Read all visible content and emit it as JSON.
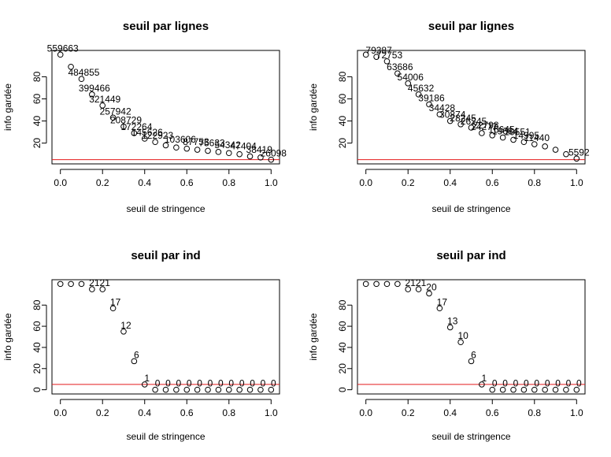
{
  "colors": {
    "reference_line": "#e41a1c",
    "points": "#000000"
  },
  "chart_data": [
    {
      "type": "scatter",
      "title": "seuil par lignes",
      "xlabel": "seuil de stringence",
      "ylabel": "info gardée",
      "xlim": [
        0,
        1
      ],
      "ylim": [
        5,
        100
      ],
      "x_ticks": [
        "0.0",
        "0.2",
        "0.4",
        "0.6",
        "0.8",
        "1.0"
      ],
      "y_ticks": [
        "20",
        "40",
        "60",
        "80"
      ],
      "reference_line_y": 5,
      "x": [
        0,
        0.05,
        0.1,
        0.15,
        0.2,
        0.25,
        0.3,
        0.35,
        0.4,
        0.45,
        0.5,
        0.55,
        0.6,
        0.65,
        0.7,
        0.75,
        0.8,
        0.85,
        0.9,
        0.95,
        1.0
      ],
      "y": [
        100,
        89,
        78,
        64,
        54,
        43,
        35,
        29,
        24,
        21,
        18,
        16,
        15,
        14,
        13,
        12,
        11,
        10,
        8,
        7,
        5
      ],
      "labels": [
        "559663",
        "",
        "484855",
        "399466",
        "321449",
        "257942",
        "208729",
        "172264",
        "145626",
        "122923",
        "",
        "",
        "",
        "",
        "",
        "",
        "",
        "",
        "",
        "",
        "26098"
      ],
      "overlap_labels": [
        "103606",
        "87753",
        "75633",
        "54342",
        "47404",
        "38419"
      ]
    },
    {
      "type": "scatter",
      "title": "seuil par lignes",
      "xlabel": "seuil de stringence",
      "ylabel": "info gardée",
      "xlim": [
        0,
        1
      ],
      "ylim": [
        5,
        100
      ],
      "x_ticks": [
        "0.0",
        "0.2",
        "0.4",
        "0.6",
        "0.8",
        "1.0"
      ],
      "y_ticks": [
        "20",
        "40",
        "60",
        "80"
      ],
      "reference_line_y": 5,
      "x": [
        0,
        0.05,
        0.1,
        0.15,
        0.2,
        0.25,
        0.3,
        0.35,
        0.4,
        0.45,
        0.5,
        0.55,
        0.6,
        0.65,
        0.7,
        0.75,
        0.8,
        0.85,
        0.9,
        0.95,
        1.0
      ],
      "y": [
        100,
        98,
        94,
        83,
        74,
        64,
        55,
        46,
        40,
        37,
        34,
        29,
        27,
        25,
        23,
        21,
        19,
        17,
        14,
        10,
        6
      ],
      "labels": [
        "",
        "79387",
        "72753",
        "63686",
        "54006",
        "45632",
        "39186",
        "34428",
        "30874",
        "28245",
        "26245",
        "24277",
        "",
        "19684",
        "",
        "14995",
        "11440",
        "",
        "",
        "",
        "5592"
      ],
      "overlap_labels": [
        "22798",
        "16645",
        "10551"
      ]
    },
    {
      "type": "scatter",
      "title": "seuil par ind",
      "xlabel": "seuil de stringence",
      "ylabel": "info gardée",
      "xlim": [
        0,
        1
      ],
      "ylim": [
        0,
        100
      ],
      "x_ticks": [
        "0.0",
        "0.2",
        "0.4",
        "0.6",
        "0.8",
        "1.0"
      ],
      "y_ticks": [
        "0",
        "20",
        "40",
        "60",
        "80"
      ],
      "reference_line_y": 5,
      "x": [
        0,
        0.05,
        0.1,
        0.15,
        0.2,
        0.25,
        0.3,
        0.35,
        0.4,
        0.45,
        0.5,
        0.55,
        0.6,
        0.65,
        0.7,
        0.75,
        0.8,
        0.85,
        0.9,
        0.95,
        1.0
      ],
      "y": [
        100,
        100,
        100,
        95,
        95,
        77,
        55,
        27,
        5,
        0,
        0,
        0,
        0,
        0,
        0,
        0,
        0,
        0,
        0,
        0,
        0
      ],
      "labels": [
        "",
        "",
        "",
        "21",
        "21",
        "17",
        "12",
        "6",
        "1",
        "0",
        "0",
        "0",
        "0",
        "0",
        "0",
        "0",
        "0",
        "0",
        "0",
        "0",
        "0"
      ]
    },
    {
      "type": "scatter",
      "title": "seuil par ind",
      "xlabel": "seuil de stringence",
      "ylabel": "info gardée",
      "xlim": [
        0,
        1
      ],
      "ylim": [
        0,
        100
      ],
      "x_ticks": [
        "0.0",
        "0.2",
        "0.4",
        "0.6",
        "0.8",
        "1.0"
      ],
      "y_ticks": [
        "0",
        "20",
        "40",
        "60",
        "80"
      ],
      "reference_line_y": 5,
      "x": [
        0,
        0.05,
        0.1,
        0.15,
        0.2,
        0.25,
        0.3,
        0.35,
        0.4,
        0.45,
        0.5,
        0.55,
        0.6,
        0.65,
        0.7,
        0.75,
        0.8,
        0.85,
        0.9,
        0.95,
        1.0
      ],
      "y": [
        100,
        100,
        100,
        100,
        95,
        95,
        91,
        77,
        59,
        45,
        27,
        5,
        0,
        0,
        0,
        0,
        0,
        0,
        0,
        0,
        0
      ],
      "labels": [
        "",
        "",
        "",
        "",
        "21",
        "21",
        "20",
        "17",
        "13",
        "10",
        "6",
        "1",
        "0",
        "0",
        "0",
        "0",
        "0",
        "0",
        "0",
        "0",
        "0"
      ]
    }
  ]
}
